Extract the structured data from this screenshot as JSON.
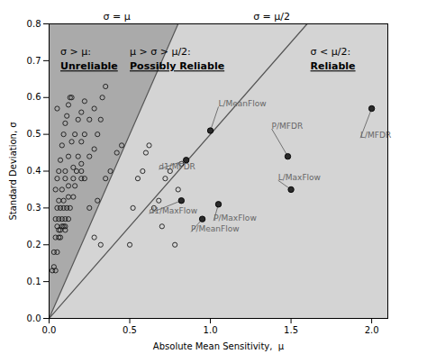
{
  "chart_data": {
    "type": "scatter",
    "xlabel": "Absolute Mean Sensitivity,  μ",
    "ylabel": "Standard Deviation, σ",
    "xlim": [
      0,
      2.1
    ],
    "ylim": [
      0,
      0.8
    ],
    "xticks": [
      {
        "value": 0,
        "label": "0.0"
      },
      0.5,
      {
        "value": 1.0,
        "label": "1.0"
      },
      1.5,
      {
        "value": 2.0,
        "label": "2.0"
      }
    ],
    "yticks": [
      {
        "value": 0,
        "label": "0.0"
      },
      0.1,
      0.2,
      0.3,
      0.4,
      0.5,
      0.6,
      0.7,
      0.8
    ],
    "x": [
      0.02,
      0.03,
      0.04,
      0.03,
      0.05,
      0.04,
      0.06,
      0.07,
      0.05,
      0.08,
      0.09,
      0.1,
      0.06,
      0.07,
      0.1,
      0.04,
      0.06,
      0.08,
      0.1,
      0.12,
      0.05,
      0.07,
      0.09,
      0.11,
      0.13,
      0.06,
      0.09,
      0.12,
      0.15,
      0.04,
      0.08,
      0.12,
      0.16,
      0.05,
      0.1,
      0.15,
      0.2,
      0.06,
      0.1,
      0.15,
      0.2,
      0.07,
      0.12,
      0.18,
      0.25,
      0.08,
      0.14,
      0.2,
      0.28,
      0.09,
      0.16,
      0.22,
      0.3,
      0.1,
      0.18,
      0.25,
      0.32,
      0.11,
      0.2,
      0.28,
      0.05,
      0.12,
      0.22,
      0.33,
      0.35,
      0.13,
      0.14,
      0.17,
      0.2,
      0.22,
      0.25,
      0.3,
      0.28,
      0.32,
      0.35,
      0.38,
      0.42,
      0.45,
      0.5,
      0.52,
      0.55,
      0.58,
      0.6,
      0.62,
      0.65,
      0.68,
      0.7,
      0.72,
      0.75,
      0.78,
      0.8,
      0.82
    ],
    "y": [
      0.13,
      0.14,
      0.13,
      0.18,
      0.18,
      0.22,
      0.22,
      0.22,
      0.25,
      0.25,
      0.25,
      0.25,
      0.24,
      0.24,
      0.24,
      0.27,
      0.27,
      0.27,
      0.27,
      0.27,
      0.3,
      0.3,
      0.3,
      0.3,
      0.3,
      0.32,
      0.32,
      0.33,
      0.33,
      0.35,
      0.35,
      0.36,
      0.36,
      0.38,
      0.38,
      0.38,
      0.4,
      0.4,
      0.4,
      0.41,
      0.42,
      0.43,
      0.44,
      0.44,
      0.44,
      0.47,
      0.48,
      0.48,
      0.46,
      0.5,
      0.5,
      0.5,
      0.5,
      0.53,
      0.54,
      0.54,
      0.54,
      0.55,
      0.56,
      0.57,
      0.57,
      0.58,
      0.59,
      0.6,
      0.63,
      0.6,
      0.6,
      0.4,
      0.38,
      0.38,
      0.3,
      0.32,
      0.22,
      0.2,
      0.38,
      0.4,
      0.45,
      0.47,
      0.2,
      0.3,
      0.38,
      0.4,
      0.45,
      0.47,
      0.3,
      0.32,
      0.25,
      0.38,
      0.4,
      0.2,
      0.35,
      0.42
    ],
    "color": "#1a1a1a",
    "marker": "open-circle",
    "labeled_points": {
      "x": [
        1.0,
        0.85,
        0.82,
        1.05,
        0.95,
        1.48,
        1.5,
        2.0
      ],
      "y": [
        0.51,
        0.43,
        0.32,
        0.31,
        0.27,
        0.44,
        0.35,
        0.57
      ],
      "labels": [
        "L/MeanFlow",
        "d1/MFDR",
        "d1/MaxFlow",
        "P/MaxFlow",
        "P/MeanFlow",
        "P/MFDR",
        "L/MaxFlow",
        "L/MFDR"
      ],
      "label_x": [
        1.05,
        0.68,
        0.62,
        1.02,
        0.88,
        1.38,
        1.42,
        1.93
      ],
      "label_y": [
        0.575,
        0.405,
        0.285,
        0.265,
        0.235,
        0.515,
        0.375,
        0.49
      ],
      "color": "#2a2a2a",
      "marker": "circle",
      "label_color": "#666666"
    },
    "regions": [
      {
        "color": "#aaaaaa",
        "x": [
          0,
          0.8,
          0
        ],
        "y": [
          0,
          0.8,
          0.8
        ]
      },
      {
        "color": "#d4d4d4",
        "x": [
          0,
          0.8,
          2.1,
          2.1
        ],
        "y": [
          0,
          0.8,
          0.8,
          0
        ]
      }
    ],
    "lines": [
      {
        "label": "σ = μ",
        "label_x": 0.42,
        "x": [
          0,
          0.8
        ],
        "y": [
          0,
          0.8
        ]
      },
      {
        "label": "σ = μ/2",
        "label_x": 1.38,
        "x": [
          0,
          1.6
        ],
        "y": [
          0,
          0.8
        ]
      }
    ],
    "line_color": "#555555",
    "region_labels": [
      {
        "condition": "σ > μ:",
        "name": "Unreliable",
        "x": 0.07,
        "condition_y": 0.735,
        "name_y": 0.695
      },
      {
        "condition": "μ > σ > μ/2:",
        "name": "Possibly Reliable",
        "x": 0.5,
        "condition_y": 0.735,
        "name_y": 0.695
      },
      {
        "condition": "σ < μ/2:",
        "name": "Reliable",
        "x": 1.62,
        "condition_y": 0.735,
        "name_y": 0.695
      }
    ]
  }
}
